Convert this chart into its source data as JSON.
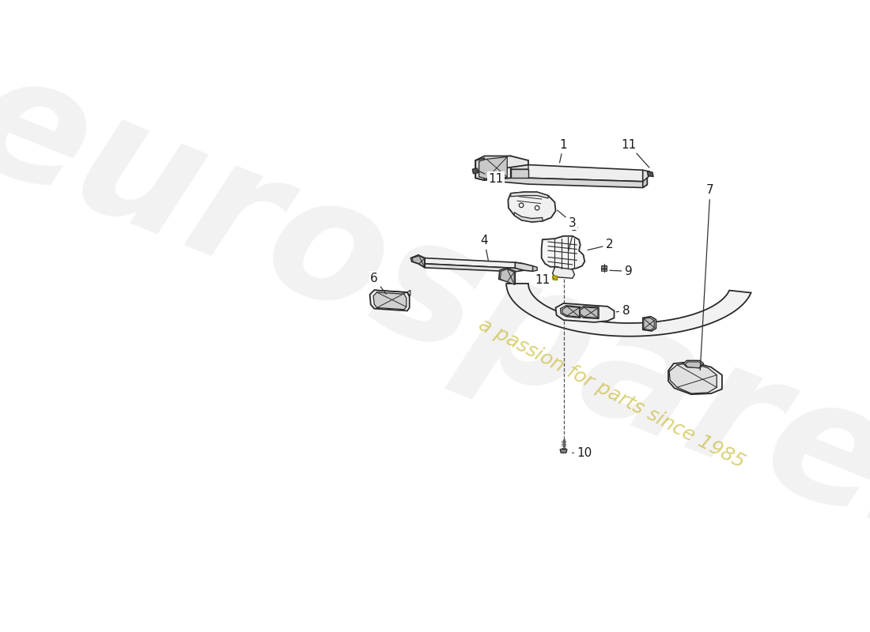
{
  "background_color": "#ffffff",
  "line_color": "#2a2a2a",
  "label_color": "#1a1a1a",
  "watermark_main": "eurospares",
  "watermark_sub": "a passion for parts since 1985",
  "watermark_gray": "#b8b8b8",
  "watermark_yellow": "#c8b830",
  "fig_width": 11.0,
  "fig_height": 8.0,
  "dpi": 100
}
